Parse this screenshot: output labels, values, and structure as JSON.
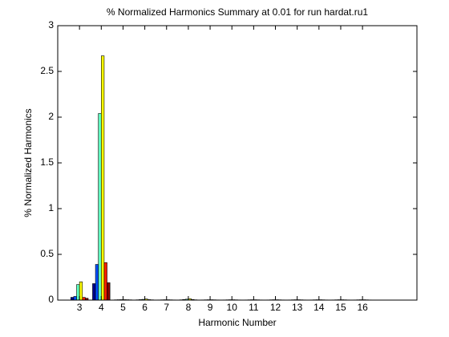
{
  "chart_data": {
    "type": "bar",
    "title": "% Normalized Harmonics Summary at 0.01 for run hardat.ru1",
    "x_label": "Harmonic Number",
    "y_label": "% Normalized Harmonics",
    "x": [
      3,
      4,
      5,
      6,
      7,
      8,
      9,
      10,
      11,
      12,
      13,
      14,
      15,
      16
    ],
    "series": [
      {
        "color": "#00008f",
        "values": [
          0.03,
          0.18,
          0.003,
          0.003,
          0.002,
          0.003,
          0.002,
          0.002,
          0.002,
          0.002,
          0.002,
          0.002,
          0.002,
          0.002
        ]
      },
      {
        "color": "#0050ff",
        "values": [
          0.04,
          0.39,
          0.004,
          0.005,
          0.003,
          0.006,
          0.003,
          0.003,
          0.003,
          0.003,
          0.003,
          0.003,
          0.003,
          0.003
        ]
      },
      {
        "color": "#60ffc0",
        "values": [
          0.17,
          2.04,
          0.005,
          0.008,
          0.004,
          0.01,
          0.004,
          0.004,
          0.004,
          0.004,
          0.004,
          0.004,
          0.004,
          0.004
        ]
      },
      {
        "color": "#ffff00",
        "values": [
          0.2,
          2.67,
          0.005,
          0.012,
          0.004,
          0.015,
          0.004,
          0.004,
          0.004,
          0.004,
          0.004,
          0.004,
          0.004,
          0.004
        ]
      },
      {
        "color": "#ff2000",
        "values": [
          0.03,
          0.41,
          0.004,
          0.005,
          0.003,
          0.006,
          0.003,
          0.003,
          0.003,
          0.003,
          0.003,
          0.003,
          0.003,
          0.003
        ]
      },
      {
        "color": "#800000",
        "values": [
          0.02,
          0.19,
          0.003,
          0.003,
          0.002,
          0.003,
          0.002,
          0.002,
          0.002,
          0.002,
          0.002,
          0.002,
          0.002,
          0.002
        ]
      }
    ],
    "xlim": [
      2,
      18.5
    ],
    "xticks": [
      3,
      4,
      5,
      6,
      7,
      8,
      9,
      10,
      11,
      12,
      13,
      14,
      15,
      16
    ],
    "ylim": [
      0,
      3
    ],
    "yticks": [
      0,
      0.5,
      1,
      1.5,
      2,
      2.5,
      3
    ],
    "grid": false
  }
}
